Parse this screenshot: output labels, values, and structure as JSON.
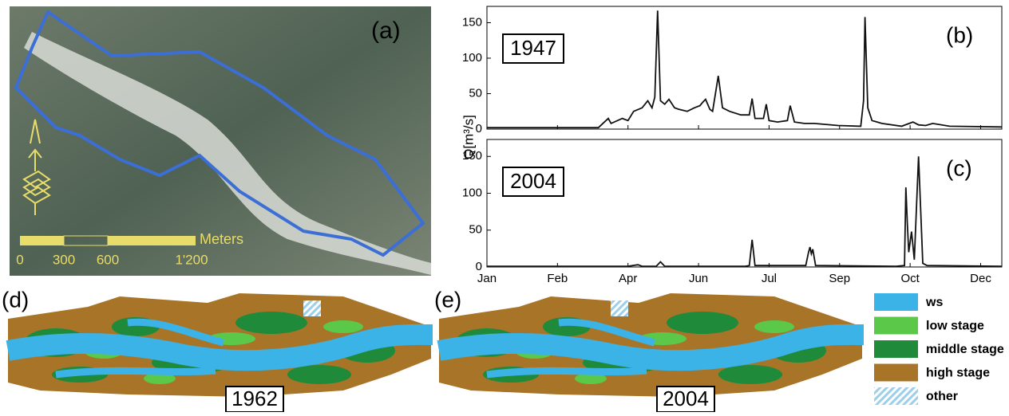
{
  "chart_data": [
    {
      "type": "line",
      "panel_label": "(b)",
      "annotation": "1947",
      "y_label": "Q[m³/s]",
      "x": [
        0,
        79,
        86,
        88,
        96,
        100,
        104,
        110,
        114,
        117,
        119,
        121,
        123,
        126,
        129,
        133,
        136,
        142,
        147,
        151,
        153,
        155,
        158,
        160,
        164,
        167,
        172,
        180,
        186,
        188,
        190,
        196,
        198,
        200,
        206,
        213,
        215,
        218,
        225,
        232,
        249,
        265,
        267,
        268,
        270,
        273,
        280,
        294,
        302,
        306,
        311,
        316,
        328,
        365
      ],
      "series": [
        {
          "color": "#111111",
          "values": [
            2,
            2,
            15,
            8,
            15,
            12,
            25,
            30,
            40,
            30,
            45,
            167,
            40,
            35,
            42,
            30,
            28,
            25,
            30,
            33,
            38,
            42,
            28,
            25,
            75,
            30,
            25,
            20,
            20,
            43,
            15,
            15,
            35,
            12,
            10,
            12,
            33,
            10,
            8,
            8,
            5,
            4,
            40,
            158,
            30,
            12,
            8,
            4,
            10,
            6,
            5,
            8,
            4,
            3
          ]
        }
      ],
      "xlim": [
        0,
        365
      ],
      "xticks": [
        0,
        50,
        100,
        150,
        200,
        250,
        300,
        350
      ],
      "ylim": [
        0,
        173
      ],
      "yticks": [
        0,
        50,
        100,
        150
      ]
    },
    {
      "type": "line",
      "panel_label": "(c)",
      "annotation": "2004",
      "x": [
        0,
        100,
        107,
        110,
        120,
        123,
        126,
        183,
        186,
        188,
        190,
        226,
        228,
        229,
        230,
        231,
        233,
        290,
        296,
        297,
        298,
        299,
        301,
        303,
        306,
        309,
        312,
        365
      ],
      "series": [
        {
          "color": "#111111",
          "values": [
            1,
            1,
            3,
            1,
            1,
            7,
            1,
            1,
            2,
            37,
            2,
            2,
            20,
            27,
            18,
            24,
            2,
            1,
            2,
            108,
            60,
            20,
            48,
            10,
            150,
            5,
            2,
            1
          ]
        }
      ],
      "xlim": [
        0,
        365
      ],
      "xticks": [
        {
          "value": 0,
          "label": "Jan"
        },
        {
          "value": 50,
          "label": "Feb"
        },
        {
          "value": 100,
          "label": "Apr"
        },
        {
          "value": 150,
          "label": "Jun"
        },
        {
          "value": 200,
          "label": "Jul"
        },
        {
          "value": 250,
          "label": "Sep"
        },
        {
          "value": 300,
          "label": "Oct"
        },
        {
          "value": 350,
          "label": "Dec"
        }
      ],
      "ylim": [
        0,
        173
      ],
      "yticks": [
        0,
        50,
        100,
        150
      ]
    }
  ],
  "aerial": {
    "panel_label": "(a)",
    "scale_unit": "Meters",
    "scale_labels": [
      "0",
      "300",
      "600",
      "1'200"
    ]
  },
  "maps": [
    {
      "panel_label": "(d)",
      "year": "1962"
    },
    {
      "panel_label": "(e)",
      "year": "2004"
    }
  ],
  "legend": {
    "items": [
      {
        "name": "ws",
        "color": "#3bb3e6"
      },
      {
        "name": "low stage",
        "color": "#5cc84a"
      },
      {
        "name": "middle stage",
        "color": "#1f8a3a"
      },
      {
        "name": "high stage",
        "color": "#a87428"
      },
      {
        "name": "other",
        "color": "#9ecfe9"
      }
    ]
  }
}
